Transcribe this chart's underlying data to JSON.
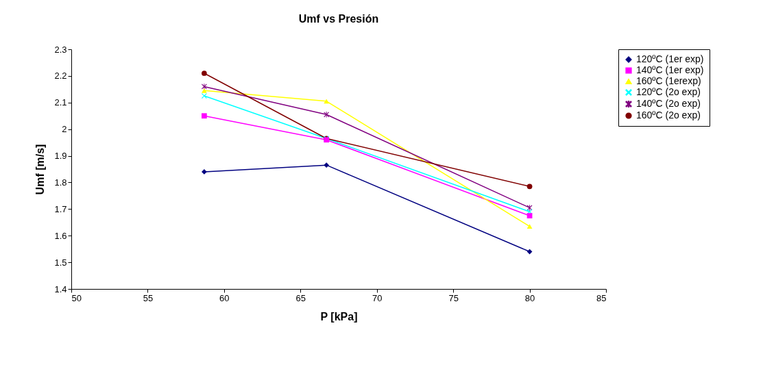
{
  "chart_data": {
    "type": "line",
    "title": "Umf vs Presión",
    "xlabel": "P [kPa]",
    "ylabel": "Umf [m/s]",
    "x": [
      58.7,
      66.7,
      80
    ],
    "xlim": [
      50,
      85
    ],
    "xticks": [
      50,
      55,
      60,
      65,
      70,
      75,
      80,
      85
    ],
    "ylim": [
      1.4,
      2.3
    ],
    "yticks": [
      1.4,
      1.5,
      1.6,
      1.7,
      1.8,
      1.9,
      2,
      2.1,
      2.2,
      2.3
    ],
    "grid": false,
    "legend": "right",
    "series": [
      {
        "name": "120ºC (1er exp)",
        "color": "#000080",
        "marker": "diamond",
        "values": [
          1.84,
          1.865,
          1.54
        ]
      },
      {
        "name": "140ºC (1er exp)",
        "color": "#ff00ff",
        "marker": "square",
        "values": [
          2.05,
          1.96,
          1.675
        ]
      },
      {
        "name": "160ºC (1erexp)",
        "color": "#ffff00",
        "marker": "triangle",
        "values": [
          2.145,
          2.105,
          1.635
        ]
      },
      {
        "name": "120ºC (2o exp)",
        "color": "#00ffff",
        "marker": "cross",
        "values": [
          2.125,
          1.965,
          1.69
        ]
      },
      {
        "name": "140ºC (2o exp)",
        "color": "#800080",
        "marker": "star",
        "values": [
          2.16,
          2.055,
          1.705
        ]
      },
      {
        "name": "160ºC (2o exp)",
        "color": "#800000",
        "marker": "circle",
        "values": [
          2.21,
          1.965,
          1.785
        ]
      }
    ]
  }
}
